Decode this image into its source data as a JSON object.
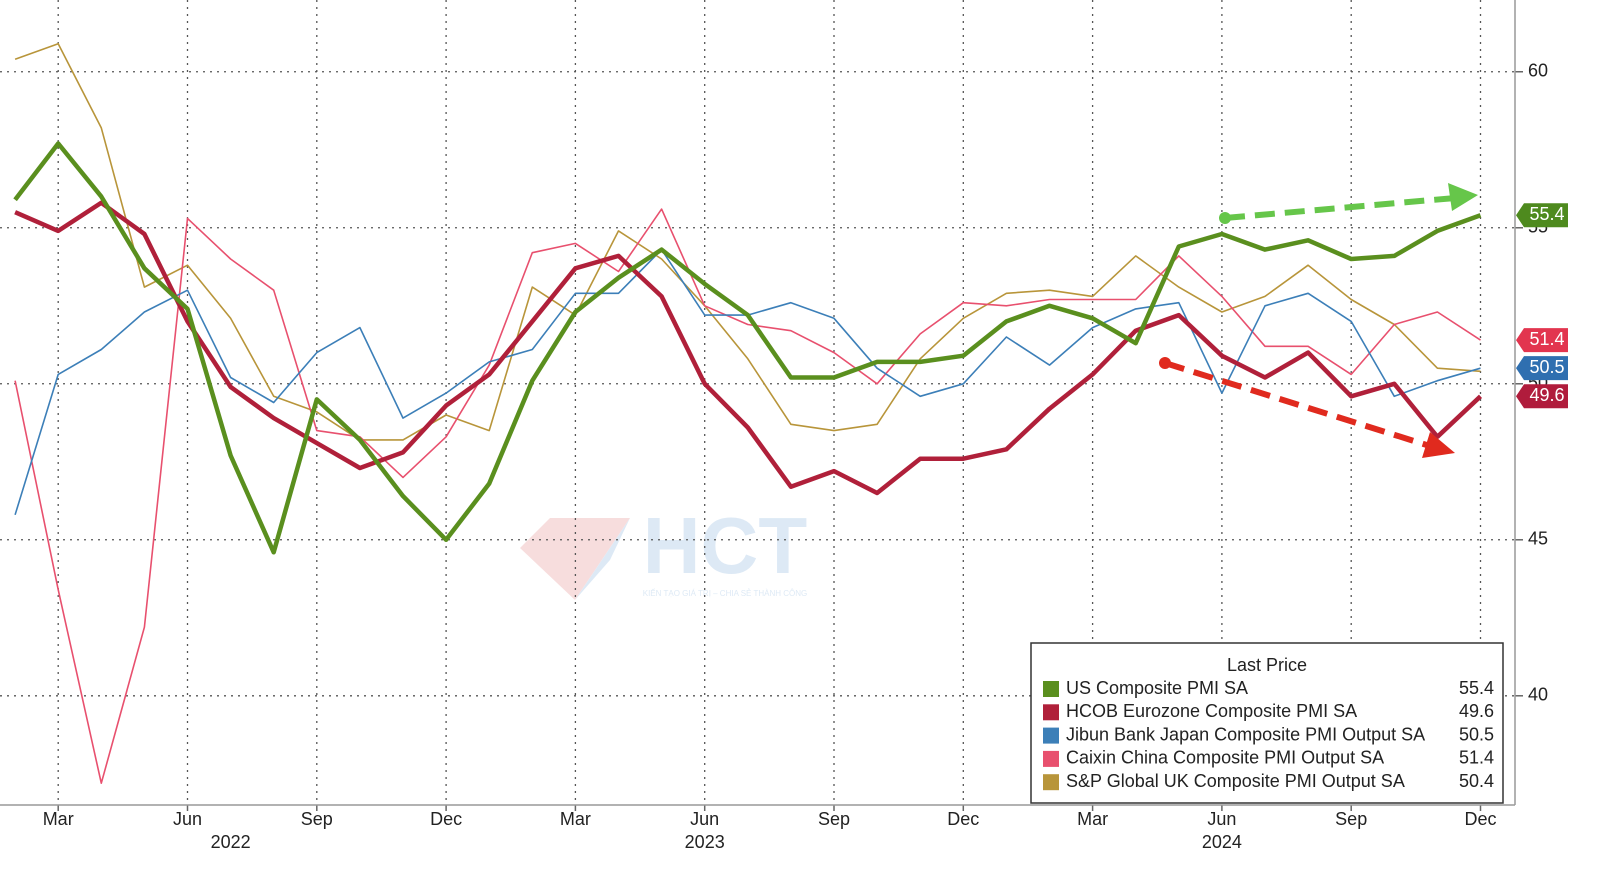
{
  "chart_data": {
    "type": "line",
    "watermark": "HCT",
    "watermark_subtitle": "KIẾN TẠO GIÁ TRỊ – CHIA SẺ THÀNH CÔNG",
    "x": [
      "2022-02",
      "2022-03",
      "2022-04",
      "2022-05",
      "2022-06",
      "2022-07",
      "2022-08",
      "2022-09",
      "2022-10",
      "2022-11",
      "2022-12",
      "2023-01",
      "2023-02",
      "2023-03",
      "2023-04",
      "2023-05",
      "2023-06",
      "2023-07",
      "2023-08",
      "2023-09",
      "2023-10",
      "2023-11",
      "2023-12",
      "2024-01",
      "2024-02",
      "2024-03",
      "2024-04",
      "2024-05",
      "2024-06",
      "2024-07",
      "2024-08",
      "2024-09",
      "2024-10",
      "2024-11",
      "2024-12"
    ],
    "xlim": [
      "2022-01",
      "2025-01"
    ],
    "xticks": [
      {
        "value": "2022-03",
        "label": "Mar"
      },
      {
        "value": "2022-06",
        "label": "Jun"
      },
      {
        "value": "2022-09",
        "label": "Sep"
      },
      {
        "value": "2022-12",
        "label": "Dec"
      },
      {
        "value": "2023-03",
        "label": "Mar"
      },
      {
        "value": "2023-06",
        "label": "Jun"
      },
      {
        "value": "2023-09",
        "label": "Sep"
      },
      {
        "value": "2023-12",
        "label": "Dec"
      },
      {
        "value": "2024-03",
        "label": "Mar"
      },
      {
        "value": "2024-06",
        "label": "Jun"
      },
      {
        "value": "2024-09",
        "label": "Sep"
      },
      {
        "value": "2024-12",
        "label": "Dec"
      }
    ],
    "x_year_labels": [
      {
        "value": "2022-07",
        "label": "2022"
      },
      {
        "value": "2023-06",
        "label": "2023"
      },
      {
        "value": "2024-06",
        "label": "2024"
      }
    ],
    "ylim": [
      36.5,
      62.3
    ],
    "yticks": [
      40,
      45,
      50,
      55,
      60
    ],
    "grid": true,
    "legend": {
      "title": "Last Price",
      "location": "lower right"
    },
    "series": [
      {
        "name": "US Composite PMI SA",
        "color": "#5a8f1e",
        "tag_color": "#4e8a1e",
        "last_price": 55.4,
        "last_price_tag": true,
        "values": [
          55.9,
          57.7,
          56.0,
          53.7,
          52.4,
          47.7,
          44.6,
          49.5,
          48.2,
          46.4,
          45.0,
          46.8,
          50.1,
          52.3,
          53.4,
          54.3,
          53.2,
          52.2,
          50.2,
          50.2,
          50.7,
          50.7,
          50.9,
          52.0,
          52.5,
          52.1,
          51.3,
          54.4,
          54.8,
          54.3,
          54.6,
          54.0,
          54.1,
          54.9,
          55.4
        ]
      },
      {
        "name": "HCOB Eurozone Composite PMI SA",
        "color": "#b0203a",
        "tag_color": "#b01c3c",
        "last_price": 49.6,
        "last_price_tag": true,
        "values": [
          55.5,
          54.9,
          55.8,
          54.8,
          52.0,
          49.9,
          48.9,
          48.1,
          47.3,
          47.8,
          49.3,
          50.3,
          52.0,
          53.7,
          54.1,
          52.8,
          50.0,
          48.6,
          46.7,
          47.2,
          46.5,
          47.6,
          47.6,
          47.9,
          49.2,
          50.3,
          51.7,
          52.2,
          50.9,
          50.2,
          51.0,
          49.6,
          50.0,
          48.3,
          49.6
        ]
      },
      {
        "name": "Jibun Bank Japan Composite PMI Output SA",
        "color": "#3c7fb8",
        "tag_color": "#2f6fb0",
        "last_price": 50.5,
        "last_price_tag": true,
        "values": [
          45.8,
          50.3,
          51.1,
          52.3,
          53.0,
          50.2,
          49.4,
          51.0,
          51.8,
          48.9,
          49.7,
          50.7,
          51.1,
          52.9,
          52.9,
          54.3,
          52.2,
          52.2,
          52.6,
          52.1,
          50.5,
          49.6,
          50.0,
          51.5,
          50.6,
          51.8,
          52.4,
          52.6,
          49.7,
          52.5,
          52.9,
          52.0,
          49.6,
          50.1,
          50.5
        ]
      },
      {
        "name": "Caixin China Composite PMI Output SA",
        "color": "#e8506e",
        "tag_color": "#e2354f",
        "last_price": 51.4,
        "last_price_tag": true,
        "values": [
          50.1,
          43.4,
          37.2,
          42.2,
          55.3,
          54.0,
          53.0,
          48.5,
          48.3,
          47.0,
          48.3,
          50.6,
          54.2,
          54.5,
          53.6,
          55.6,
          52.5,
          51.9,
          51.7,
          51.0,
          50.0,
          51.6,
          52.6,
          52.5,
          52.7,
          52.7,
          52.7,
          54.1,
          52.8,
          51.2,
          51.2,
          50.3,
          51.9,
          52.3,
          51.4
        ]
      },
      {
        "name": "S&P Global UK Composite PMI Output SA",
        "color": "#b8953a",
        "tag_color": "#b8953a",
        "last_price": 50.4,
        "last_price_tag": false,
        "values": [
          60.4,
          60.9,
          58.2,
          53.1,
          53.8,
          52.1,
          49.6,
          49.1,
          48.2,
          48.2,
          49.0,
          48.5,
          53.1,
          52.2,
          54.9,
          54.0,
          52.5,
          50.8,
          48.7,
          48.5,
          48.7,
          50.8,
          52.1,
          52.9,
          53.0,
          52.8,
          54.1,
          53.1,
          52.3,
          52.8,
          53.8,
          52.7,
          51.9,
          50.5,
          50.4
        ]
      }
    ]
  }
}
